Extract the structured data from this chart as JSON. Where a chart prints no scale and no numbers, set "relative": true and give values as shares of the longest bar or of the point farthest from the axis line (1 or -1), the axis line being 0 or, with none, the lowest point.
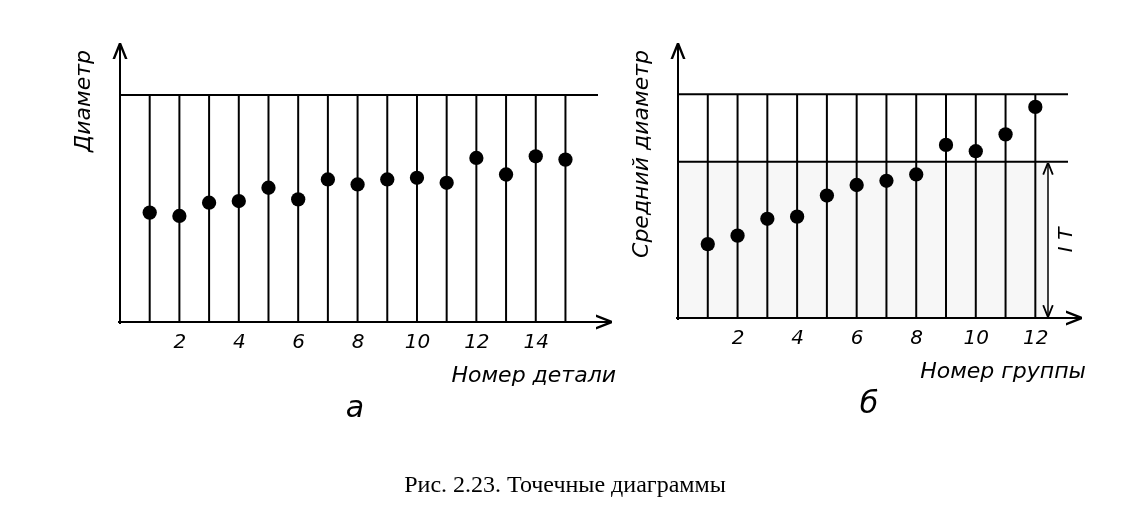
{
  "chart_data": [
    {
      "type": "scatter",
      "subtitle": "а",
      "xlabel": "Номер детали",
      "ylabel": "Диаметр",
      "relative": true,
      "marker": "circle",
      "grid": "x",
      "x": [
        1,
        2,
        3,
        4,
        5,
        6,
        7,
        8,
        9,
        10,
        11,
        12,
        13,
        14,
        15
      ],
      "series": [
        {
          "color": "#000000",
          "values": [
            0.66,
            0.64,
            0.72,
            0.73,
            0.81,
            0.74,
            0.86,
            0.83,
            0.86,
            0.87,
            0.84,
            0.99,
            0.89,
            1,
            0.98
          ]
        }
      ],
      "xlim": [
        0,
        16.5
      ],
      "xticks": [
        {
          "value": 1,
          "label": null
        },
        2,
        {
          "value": 3,
          "label": null
        },
        4,
        {
          "value": 5,
          "label": null
        },
        6,
        {
          "value": 7,
          "label": null
        },
        8,
        {
          "value": 9,
          "label": null
        },
        10,
        {
          "value": 11,
          "label": null
        },
        12,
        {
          "value": 13,
          "label": null
        },
        14,
        {
          "value": 15,
          "label": null
        }
      ],
      "ref_lines": [
        {
          "axis": "y",
          "value": 1.37
        }
      ],
      "annotations": [
        "Рис. 2.23. Точечные диаграммы"
      ]
    },
    {
      "type": "scatter",
      "subtitle": "б",
      "xlabel": "Номер группы",
      "ylabel": "Средний диаметр",
      "relative": true,
      "marker": "circle",
      "grid": "x",
      "x": [
        1,
        2,
        3,
        4,
        5,
        6,
        7,
        8,
        9,
        10,
        11,
        12
      ],
      "series": [
        {
          "color": "#000000",
          "values": [
            0.35,
            0.39,
            0.47,
            0.48,
            0.58,
            0.63,
            0.65,
            0.68,
            0.82,
            0.79,
            0.87,
            1
          ]
        }
      ],
      "xlim": [
        0,
        13.5
      ],
      "xticks": [
        {
          "value": 1,
          "label": null
        },
        2,
        {
          "value": 3,
          "label": null
        },
        4,
        {
          "value": 5,
          "label": null
        },
        6,
        {
          "value": 7,
          "label": null
        },
        8,
        {
          "value": 9,
          "label": null
        },
        10,
        {
          "value": 11,
          "label": null
        },
        12
      ],
      "ref_lines": [
        {
          "axis": "y",
          "value": 1.06
        },
        {
          "axis": "y",
          "value": 0.74
        }
      ],
      "bands": [
        {
          "axis": "y",
          "from": 0,
          "to": 0.74,
          "label": "I T"
        }
      ]
    }
  ]
}
